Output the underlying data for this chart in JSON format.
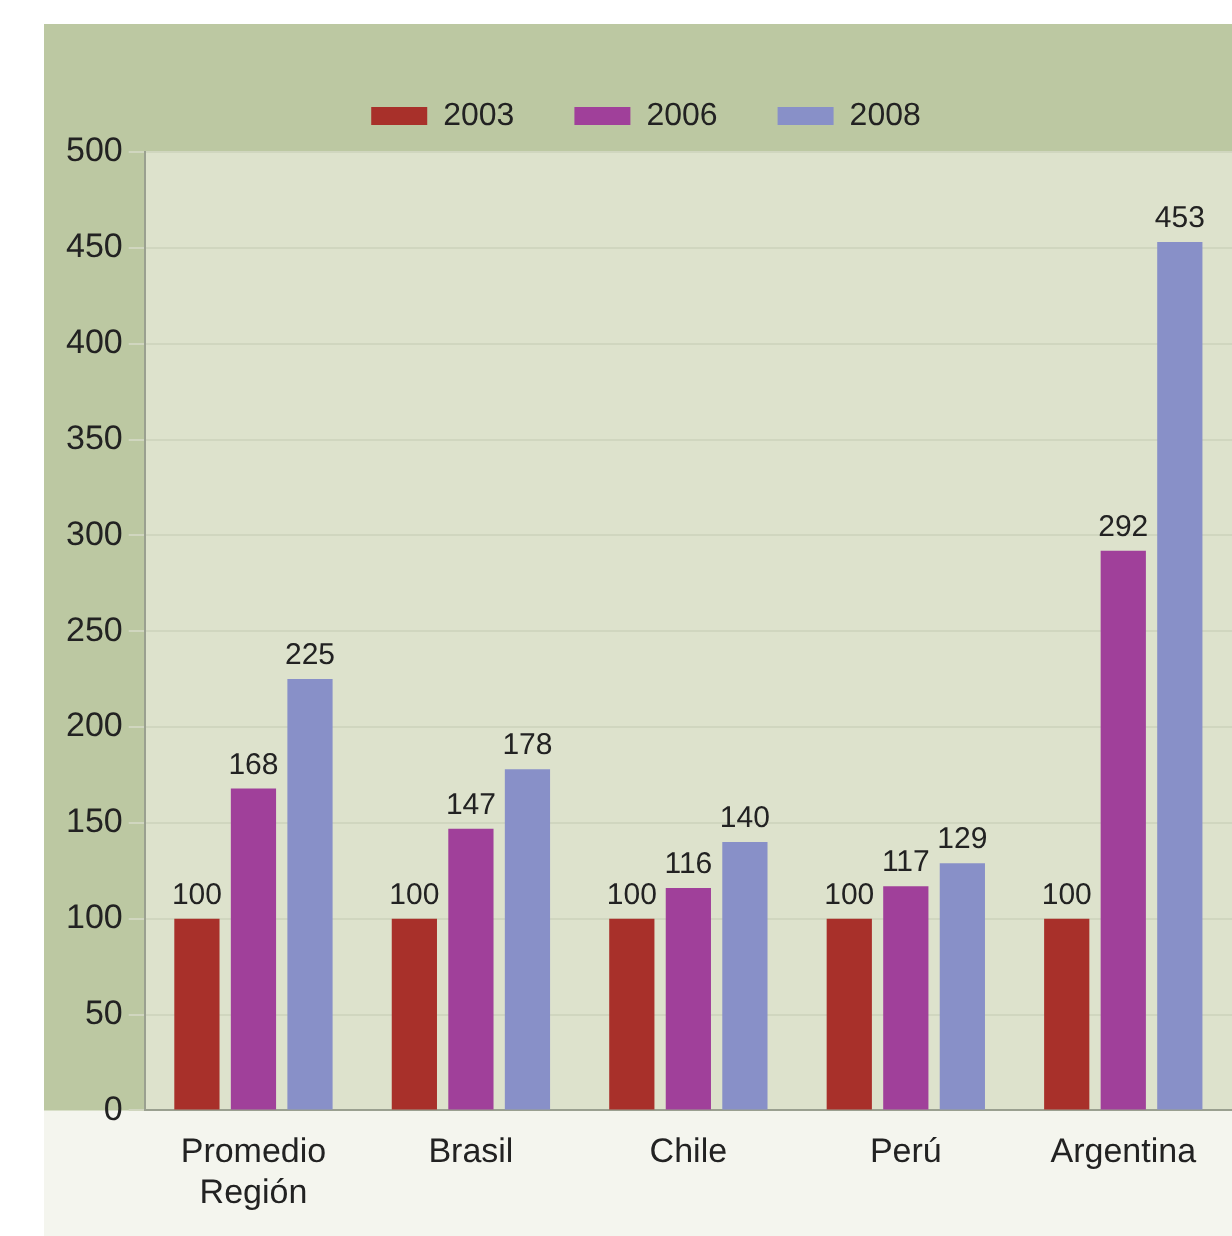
{
  "chart_data": {
    "type": "bar",
    "categories": [
      "Promedio Región",
      "Brasil",
      "Chile",
      "Perú",
      "Argentina"
    ],
    "series": [
      {
        "name": "2003",
        "color": "#a8302a",
        "values": [
          100,
          100,
          100,
          100,
          100
        ]
      },
      {
        "name": "2006",
        "color": "#a0409a",
        "values": [
          168,
          147,
          116,
          117,
          292
        ]
      },
      {
        "name": "2008",
        "color": "#8890c8",
        "values": [
          225,
          178,
          140,
          129,
          453
        ]
      }
    ],
    "ylim": [
      0,
      500
    ],
    "yticks": [
      0,
      50,
      100,
      150,
      200,
      250,
      300,
      350,
      400,
      450,
      500
    ],
    "grid": "y",
    "legend": "top",
    "data_labels": true
  }
}
